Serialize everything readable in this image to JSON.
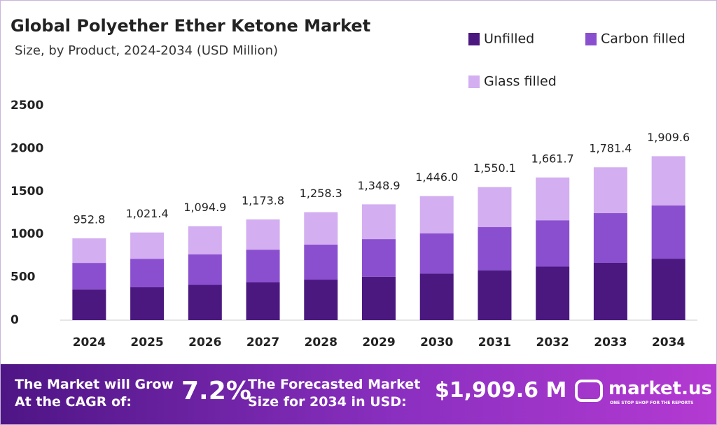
{
  "chart_data": {
    "type": "stacked_bar",
    "title": "Global Polyether Ether Ketone Market",
    "subtitle": "Size, by Product, 2024-2034 (USD Million)",
    "categories": [
      "2024",
      "2025",
      "2026",
      "2027",
      "2028",
      "2029",
      "2030",
      "2031",
      "2032",
      "2033",
      "2034"
    ],
    "series": [
      {
        "name": "Unfilled",
        "color": "#4b1880",
        "values": [
          357,
          383,
          411,
          440,
          472,
          506,
          542,
          581,
          623,
          668,
          716
        ]
      },
      {
        "name": "Carbon filled",
        "color": "#8a4fcf",
        "values": [
          310,
          332,
          356,
          381,
          409,
          438,
          470,
          504,
          540,
          579,
          621
        ]
      },
      {
        "name": "Glass filled",
        "color": "#d3aef0",
        "values": [
          286,
          306,
          328,
          353,
          377,
          405,
          434,
          465,
          499,
          534,
          573
        ]
      }
    ],
    "totals": [
      952.8,
      1021.4,
      1094.9,
      1173.8,
      1258.3,
      1348.9,
      1446.0,
      1550.1,
      1661.7,
      1781.4,
      1909.6
    ],
    "total_labels": [
      "952.8",
      "1,021.4",
      "1,094.9",
      "1,173.8",
      "1,258.3",
      "1,348.9",
      "1,446.0",
      "1,550.1",
      "1,661.7",
      "1,781.4",
      "1,909.6"
    ],
    "ylim": [
      0,
      2500
    ],
    "yticks": [
      0,
      500,
      1000,
      1500,
      2000,
      2500
    ],
    "grid": false
  },
  "footer": {
    "cagr_text_1": "The Market will Grow",
    "cagr_text_2": "At the CAGR of:",
    "cagr": "7.2%",
    "forecast_text_1": "The Forecasted Market",
    "forecast_text_2": "Size for 2034 in USD:",
    "forecast": "$1,909.6 M",
    "brand": "market.us",
    "tagline": "ONE STOP SHOP FOR THE REPORTS"
  }
}
